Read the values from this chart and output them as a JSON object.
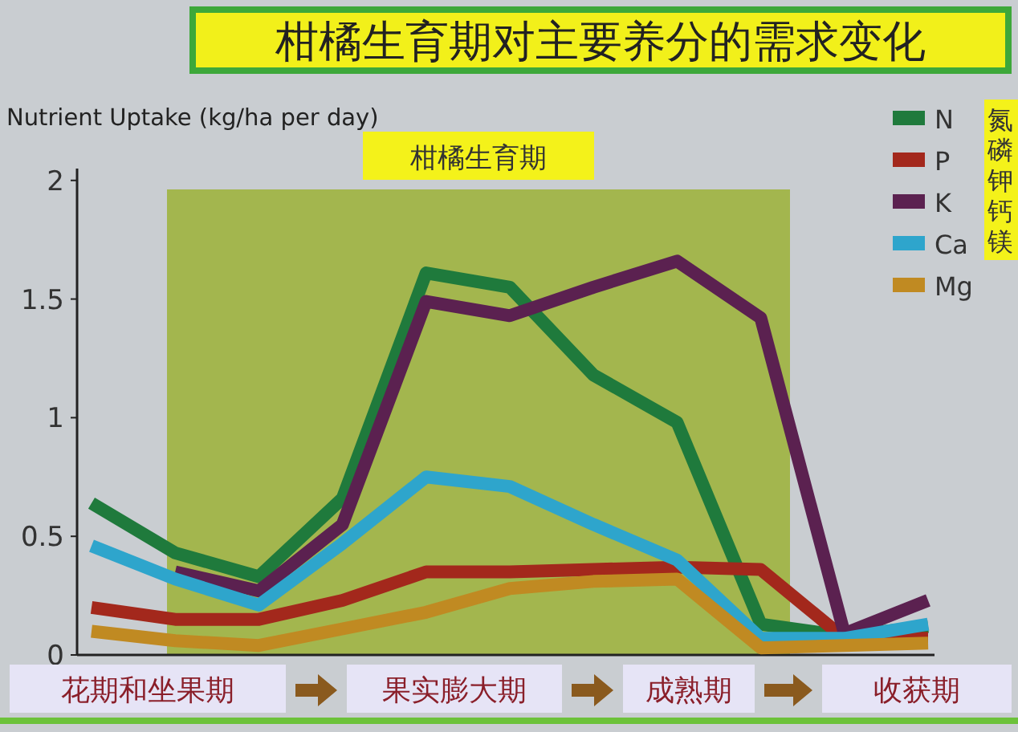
{
  "chart_data": {
    "type": "line",
    "title": "柑橘生育期对主要养分的需求变化",
    "ylabel": "Nutrient Uptake (kg/ha per day)",
    "categories": [
      null,
      null,
      null,
      null,
      null,
      null,
      null,
      null,
      null,
      null,
      null
    ],
    "series": [
      {
        "name": "N",
        "color": "#1f7a3c",
        "values": [
          0.64,
          0.43,
          0.33,
          0.66,
          1.61,
          1.55,
          1.18,
          0.98,
          0.13,
          0.08,
          0.12
        ]
      },
      {
        "name": "P",
        "color": "#a3281c",
        "values": [
          0.2,
          0.15,
          0.15,
          0.23,
          0.35,
          0.35,
          0.36,
          0.37,
          0.36,
          0.07,
          0.07
        ]
      },
      {
        "name": "K",
        "color": "#5b2150",
        "values": [
          null,
          0.35,
          0.27,
          0.55,
          1.49,
          1.43,
          1.55,
          1.66,
          1.42,
          0.09,
          0.23
        ]
      },
      {
        "name": "Ca",
        "color": "#2ea5cc",
        "values": [
          0.46,
          0.32,
          0.21,
          0.47,
          0.75,
          0.71,
          0.55,
          0.4,
          0.07,
          0.07,
          0.13
        ]
      },
      {
        "name": "Mg",
        "color": "#c08a22",
        "values": [
          0.1,
          0.06,
          0.04,
          0.11,
          0.18,
          0.28,
          0.31,
          0.32,
          0.03,
          0.04,
          0.05
        ]
      }
    ],
    "ylim": [
      0,
      2.05
    ],
    "yticks": [
      0,
      0.5,
      1,
      1.5,
      2
    ],
    "grid": false,
    "legend": "top right",
    "line_style": "solid",
    "marker": "none",
    "annotations": [
      "柑橘生育期",
      "氮磷钾钙镁",
      "花期和坐果期",
      "果实膨大期",
      "成熟期",
      "收获期"
    ]
  }
}
